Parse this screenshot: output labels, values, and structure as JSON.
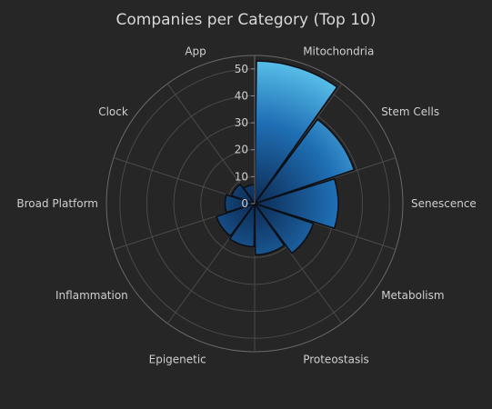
{
  "chart_data": {
    "type": "polar-bar",
    "title": "Companies per Category (Top 10)",
    "categories": [
      "Mitochondria",
      "Stem Cells",
      "Senescence",
      "Metabolism",
      "Proteostasis",
      "Epigenetic",
      "Inflammation",
      "Broad Platform",
      "Clock",
      "App"
    ],
    "values": [
      53,
      39,
      31,
      23,
      19,
      16,
      15,
      11,
      9,
      7
    ],
    "radial_ticks": [
      0,
      10,
      20,
      30,
      40,
      50
    ],
    "radial_range": [
      0,
      55
    ],
    "angular_direction": "clockwise",
    "grid": true,
    "bar_gradient": [
      "#0d2a52",
      "#1f6fb5",
      "#5cc4ec"
    ],
    "bar_outline": "#0b0f16"
  }
}
